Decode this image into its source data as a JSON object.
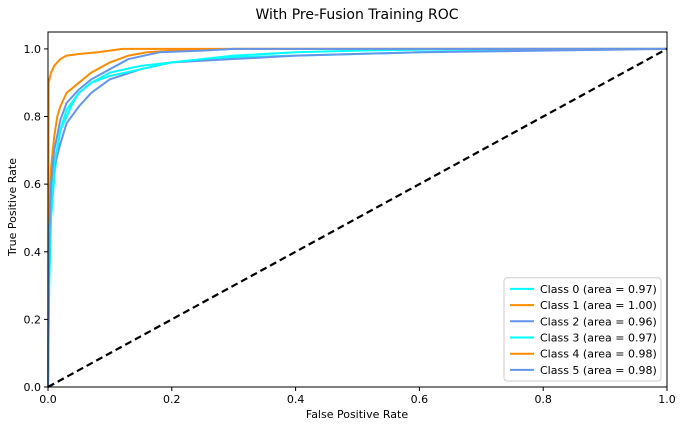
{
  "chart_data": {
    "type": "line",
    "title": "With Pre-Fusion Training ROC",
    "xlabel": "False Positive Rate",
    "ylabel": "True Positive Rate",
    "xlim": [
      0.0,
      1.0
    ],
    "ylim": [
      0.0,
      1.05
    ],
    "xticks": [
      "0.0",
      "0.2",
      "0.4",
      "0.6",
      "0.8",
      "1.0"
    ],
    "yticks": [
      "0.0",
      "0.2",
      "0.4",
      "0.6",
      "0.8",
      "1.0"
    ],
    "xtick_values": [
      0.0,
      0.2,
      0.4,
      0.6,
      0.8,
      1.0
    ],
    "ytick_values": [
      0.0,
      0.2,
      0.4,
      0.6,
      0.8,
      1.0
    ],
    "grid": false,
    "legend_position": "lower-right",
    "series": [
      {
        "name": "Class 0 (area = 0.97)",
        "color": "#00FFFF",
        "x": [
          0.0,
          0.002,
          0.005,
          0.01,
          0.015,
          0.02,
          0.03,
          0.04,
          0.05,
          0.07,
          0.1,
          0.15,
          0.2,
          0.3,
          0.4,
          0.5,
          0.6,
          0.7,
          0.8,
          0.9,
          1.0
        ],
        "y": [
          0.0,
          0.3,
          0.5,
          0.62,
          0.7,
          0.76,
          0.8,
          0.84,
          0.87,
          0.9,
          0.93,
          0.95,
          0.96,
          0.975,
          0.98,
          0.985,
          0.99,
          0.995,
          0.998,
          1.0,
          1.0
        ]
      },
      {
        "name": "Class 1 (area = 1.00)",
        "color": "#FF8C00",
        "x": [
          0.0,
          0.001,
          0.005,
          0.01,
          0.02,
          0.03,
          0.05,
          0.08,
          0.1,
          0.12,
          0.2,
          1.0
        ],
        "y": [
          0.0,
          0.9,
          0.93,
          0.95,
          0.97,
          0.98,
          0.985,
          0.99,
          0.995,
          1.0,
          1.0,
          1.0
        ]
      },
      {
        "name": "Class 2 (area = 0.96)",
        "color": "#6495ED",
        "x": [
          0.0,
          0.002,
          0.005,
          0.01,
          0.02,
          0.03,
          0.05,
          0.07,
          0.1,
          0.15,
          0.2,
          0.3,
          0.4,
          0.6,
          0.8,
          1.0
        ],
        "y": [
          0.0,
          0.4,
          0.55,
          0.65,
          0.72,
          0.78,
          0.83,
          0.87,
          0.91,
          0.94,
          0.96,
          0.97,
          0.98,
          0.99,
          0.995,
          1.0
        ]
      },
      {
        "name": "Class 3 (area = 0.97)",
        "color": "#00FFFF",
        "x": [
          0.0,
          0.002,
          0.005,
          0.01,
          0.02,
          0.03,
          0.05,
          0.07,
          0.1,
          0.15,
          0.2,
          0.25,
          0.3,
          0.4,
          0.5,
          0.7,
          1.0
        ],
        "y": [
          0.0,
          0.4,
          0.55,
          0.66,
          0.76,
          0.82,
          0.87,
          0.9,
          0.92,
          0.94,
          0.96,
          0.97,
          0.98,
          0.99,
          0.995,
          1.0,
          1.0
        ]
      },
      {
        "name": "Class 4 (area = 0.98)",
        "color": "#FF8C00",
        "x": [
          0.0,
          0.002,
          0.005,
          0.01,
          0.015,
          0.02,
          0.03,
          0.05,
          0.07,
          0.1,
          0.13,
          0.16,
          0.2,
          0.3,
          1.0
        ],
        "y": [
          0.0,
          0.5,
          0.65,
          0.74,
          0.8,
          0.83,
          0.87,
          0.9,
          0.93,
          0.96,
          0.98,
          0.99,
          0.995,
          1.0,
          1.0
        ]
      },
      {
        "name": "Class 5 (area = 0.98)",
        "color": "#6495ED",
        "x": [
          0.0,
          0.002,
          0.005,
          0.01,
          0.02,
          0.03,
          0.05,
          0.07,
          0.1,
          0.13,
          0.18,
          0.25,
          0.3,
          1.0
        ],
        "y": [
          0.0,
          0.45,
          0.6,
          0.7,
          0.79,
          0.84,
          0.88,
          0.91,
          0.94,
          0.97,
          0.99,
          0.995,
          1.0,
          1.0
        ]
      },
      {
        "name": "",
        "role": "chance-diagonal",
        "color": "#000000",
        "dashed": true,
        "x": [
          0.0,
          1.0
        ],
        "y": [
          0.0,
          1.0
        ]
      }
    ]
  }
}
